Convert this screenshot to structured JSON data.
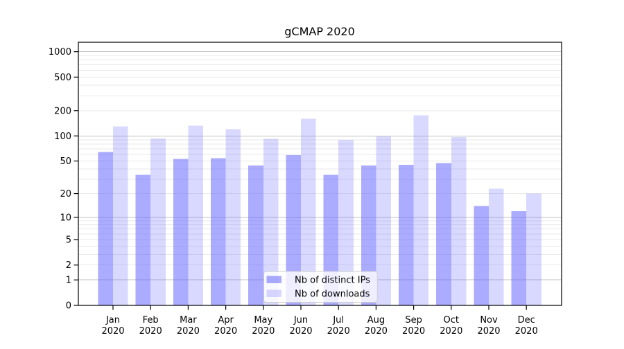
{
  "chart_data": {
    "type": "bar",
    "title": "gCMAP 2020",
    "categories": [
      "Jan 2020",
      "Feb 2020",
      "Mar 2020",
      "Apr 2020",
      "May 2020",
      "Jun 2020",
      "Jul 2020",
      "Aug 2020",
      "Sep 2020",
      "Oct 2020",
      "Nov 2020",
      "Dec 2020"
    ],
    "series": [
      {
        "name": "Nb of distinct IPs",
        "color": "rgba(102,102,255,0.55)",
        "values": [
          64,
          34,
          53,
          54,
          44,
          59,
          34,
          44,
          45,
          47,
          14,
          12
        ]
      },
      {
        "name": "Nb of downloads",
        "color": "rgba(102,102,255,0.25)",
        "values": [
          130,
          93,
          132,
          120,
          92,
          160,
          90,
          99,
          176,
          97,
          23,
          20
        ]
      }
    ],
    "xlabel": "",
    "ylabel": "",
    "yscale": "symlog-like (log10 of value+1, with 0 shown)",
    "yticks": [
      1000,
      500,
      200,
      100,
      50,
      20,
      10,
      5,
      2,
      1,
      0
    ],
    "ylim": [
      0,
      1290
    ],
    "grid": true,
    "legend_position": "lower center inside plot",
    "colors": {
      "bar_base": "#6666ff",
      "major_gridline": "#c0c0c0",
      "minor_gridline": "#e9e9e9",
      "axis": "#000000",
      "text": "#000000",
      "legend_border": "#cccccc",
      "legend_background": "rgba(255,255,255,0.8)"
    }
  }
}
